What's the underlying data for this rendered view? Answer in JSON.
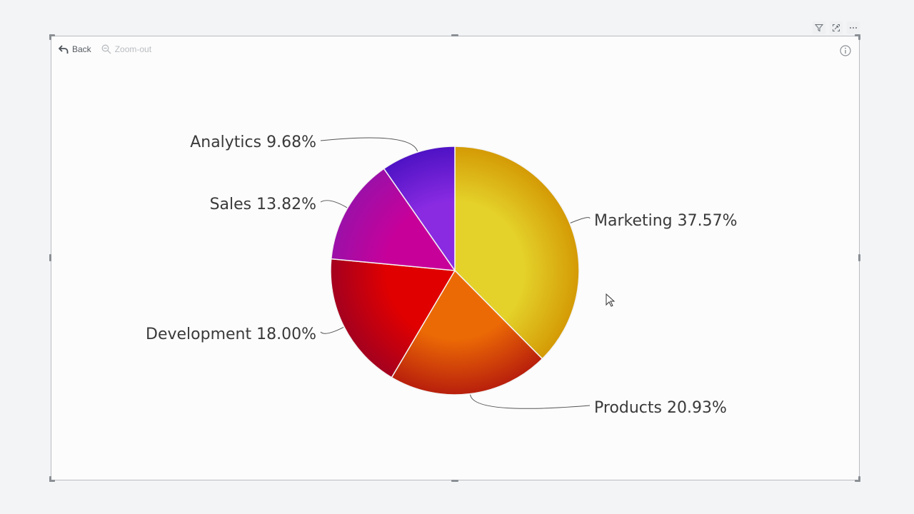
{
  "toolbar": {
    "filter_icon": "filter-icon",
    "focus_icon": "focus-mode-icon",
    "more_icon": "more-options-icon"
  },
  "drill": {
    "back_label": "Back",
    "zoom_out_label": "Zoom-out"
  },
  "chart_data": {
    "type": "pie",
    "categories": [
      "Marketing",
      "Products",
      "Development",
      "Sales",
      "Analytics"
    ],
    "values": [
      37.57,
      20.93,
      18.0,
      13.82,
      9.68
    ],
    "labels": [
      "Marketing 37.57%",
      "Products 20.93%",
      "Development 18.00%",
      "Sales 13.82%",
      "Analytics 9.68%"
    ],
    "colors": [
      [
        "#e4d22a",
        "#d49a05"
      ],
      [
        "#ec6a05",
        "#b81f0c"
      ],
      [
        "#e00000",
        "#a4001f"
      ],
      [
        "#c8009a",
        "#9b10a8"
      ],
      [
        "#8a2be2",
        "#4e12c4"
      ]
    ],
    "start_angle_deg": 0,
    "direction": "clockwise"
  }
}
